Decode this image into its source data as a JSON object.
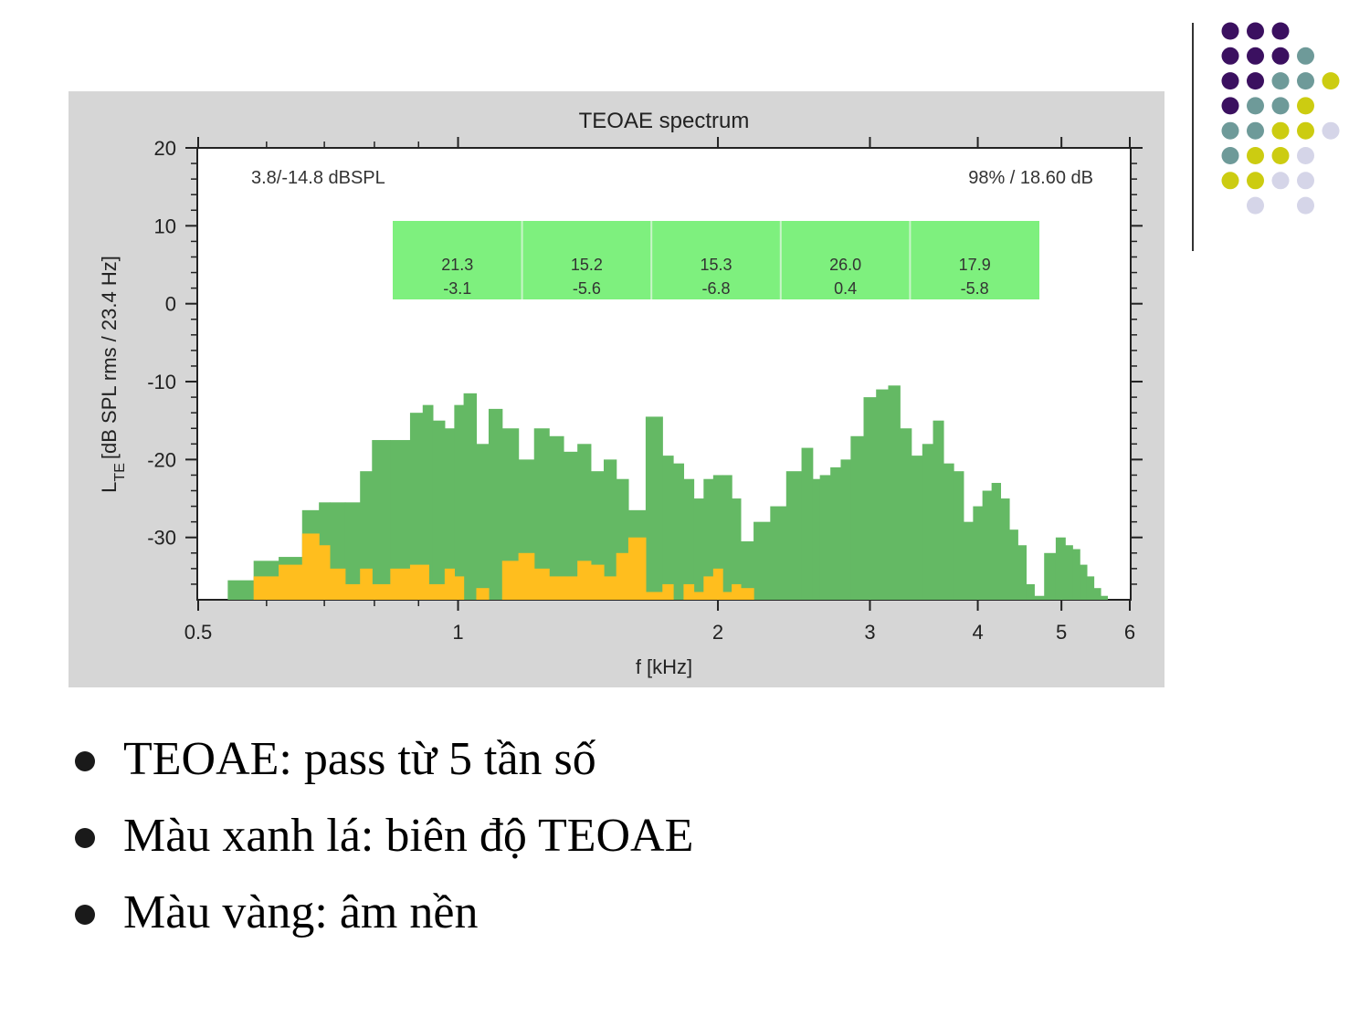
{
  "chart_data": {
    "type": "bar",
    "title": "TEOAE spectrum",
    "xlabel": "f [kHz]",
    "ylabel": "L",
    "ylabel_subscript": "TE",
    "ylabel_units": "[dB SPL rms / 23.4 Hz]",
    "x_scale": "log",
    "xlim": [
      0.5,
      6
    ],
    "ylim": [
      -38,
      20
    ],
    "x_ticks": [
      0.5,
      1,
      2,
      3,
      4,
      5,
      6
    ],
    "x_tick_labels": [
      "0.5",
      "1",
      "2",
      "3",
      "4",
      "5",
      "6"
    ],
    "y_ticks": [
      20,
      10,
      0,
      -10,
      -20,
      -30
    ],
    "y_tick_labels": [
      "20",
      "10",
      "0",
      "-10",
      "-20",
      "-30"
    ],
    "annotation_left": "3.8/-14.8 dBSPL",
    "annotation_right": "98% / 18.60 dB",
    "bands": [
      {
        "top": "21.3",
        "bottom": "-3.1"
      },
      {
        "top": "15.2",
        "bottom": "-5.6"
      },
      {
        "top": "15.3",
        "bottom": "-6.8"
      },
      {
        "top": "26.0",
        "bottom": "0.4"
      },
      {
        "top": "17.9",
        "bottom": "-5.8"
      }
    ],
    "band_colors": {
      "fill": "#7ef07e",
      "divider": "#c8f5c8"
    },
    "series": [
      {
        "color": "#64b964",
        "x": [
          0.56,
          0.6,
          0.64,
          0.68,
          0.7,
          0.72,
          0.76,
          0.78,
          0.81,
          0.86,
          0.9,
          0.92,
          0.95,
          0.98,
          1.0,
          1.03,
          1.07,
          1.1,
          1.15,
          1.2,
          1.25,
          1.3,
          1.35,
          1.4,
          1.45,
          1.5,
          1.55,
          1.6,
          1.7,
          1.75,
          1.8,
          1.85,
          1.9,
          1.95,
          2.0,
          2.05,
          2.1,
          2.15,
          2.25,
          2.35,
          2.45,
          2.55,
          2.6,
          2.65,
          2.75,
          2.8,
          2.9,
          3.0,
          3.1,
          3.2,
          3.3,
          3.4,
          3.5,
          3.6,
          3.7,
          3.8,
          3.9,
          4.0,
          4.1,
          4.2,
          4.3,
          4.4,
          4.5,
          4.6,
          4.7,
          4.85,
          5.0,
          5.1,
          5.2,
          5.3,
          5.4,
          5.5,
          5.6
        ],
        "values": [
          -35.5,
          -33,
          -32.5,
          -26.5,
          -25.5,
          -25.5,
          -25.5,
          -21.5,
          -17.5,
          -17.5,
          -14,
          -13,
          -15,
          -16,
          -13,
          -11.5,
          -18,
          -13.5,
          -16,
          -20,
          -16,
          -17,
          -19,
          -18,
          -21.5,
          -20,
          -22.5,
          -26.5,
          -14.5,
          -19.5,
          -20.5,
          -22.5,
          -25,
          -22.5,
          -22,
          -22,
          -25,
          -30.5,
          -28,
          -26,
          -21.5,
          -18.5,
          -22.5,
          -22,
          -21,
          -20,
          -17,
          -12,
          -11,
          -10.5,
          -16,
          -19.5,
          -18,
          -15,
          -20.5,
          -21.5,
          -28,
          -26,
          -24,
          -23,
          -25,
          -29,
          -31,
          -36,
          -37.5,
          -32,
          -30,
          -31,
          -31.5,
          -33.5,
          -35,
          -36.5,
          -37.5
        ]
      },
      {
        "color": "#ffbe1e",
        "x": [
          0.56,
          0.6,
          0.64,
          0.68,
          0.7,
          0.72,
          0.76,
          0.78,
          0.81,
          0.86,
          0.9,
          0.95,
          0.98,
          1.0,
          1.03,
          1.07,
          1.1,
          1.15,
          1.2,
          1.25,
          1.3,
          1.35,
          1.4,
          1.45,
          1.5,
          1.55,
          1.6,
          1.7,
          1.75,
          1.8,
          1.85,
          1.9,
          1.95,
          2.0,
          2.05,
          2.1,
          2.15,
          2.25,
          2.35,
          2.45,
          2.55,
          2.65,
          2.75,
          2.9,
          3.0,
          3.1,
          3.2,
          3.3,
          3.4,
          3.5,
          3.6,
          3.7,
          3.8,
          3.9,
          4.0,
          4.1,
          4.2,
          4.3,
          4.4,
          4.5,
          4.6,
          4.7,
          4.85,
          5.0,
          5.1,
          5.2,
          5.3,
          5.4,
          5.5,
          5.6
        ],
        "values": [
          -38,
          -35,
          -33.5,
          -29.5,
          -31,
          -34,
          -36,
          -34,
          -36,
          -34,
          -33.5,
          -36,
          -34,
          -35,
          -38,
          -36.5,
          -38,
          -33,
          -32,
          -34,
          -35,
          -35,
          -33,
          -33.5,
          -35,
          -32,
          -30,
          -37,
          -36,
          -38,
          -36,
          -37,
          -35,
          -34,
          -37,
          -36,
          -36.5,
          -38,
          -38,
          -38,
          -38,
          -38,
          -38,
          -38,
          -38,
          -38,
          -38,
          -38,
          -38,
          -38,
          -38,
          -38,
          -38,
          -38,
          -38,
          -38,
          -38,
          -38,
          -38,
          -38,
          -38,
          -38,
          -38,
          -38,
          -38,
          -38,
          -38,
          -38,
          -38,
          -38
        ]
      }
    ]
  },
  "bullets": [
    "TEOAE: pass từ 5 tần số",
    "Màu xanh lá: biên độ TEOAE",
    "Màu vàng: âm nền"
  ],
  "decoration": {
    "dot_colors": {
      "P": "#3b1060",
      "T": "#6e9a99",
      "Y": "#cccc11",
      "L": "#d5d5e8"
    },
    "dot_rows": [
      "PPP",
      "PPPT",
      "PPTTY",
      "PTTY",
      "TTYYL",
      "TYYL",
      "YYLL",
      ".L.L"
    ]
  }
}
